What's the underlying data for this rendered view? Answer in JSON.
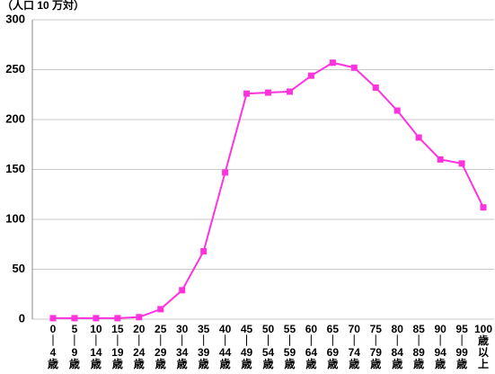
{
  "chart_data": {
    "type": "line",
    "y_axis_label": "（人口 10 万対）",
    "categories": [
      "0｜4歳",
      "5｜9歳",
      "10｜14歳",
      "15｜19歳",
      "20｜24歳",
      "25｜29歳",
      "30｜34歳",
      "35｜39歳",
      "40｜44歳",
      "45｜49歳",
      "50｜54歳",
      "55｜59歳",
      "60｜64歳",
      "65｜69歳",
      "70｜74歳",
      "75｜79歳",
      "80｜84歳",
      "85｜89歳",
      "90｜94歳",
      "95｜99歳",
      "100歳以上"
    ],
    "values": [
      1,
      1,
      1,
      1,
      2,
      10,
      29,
      68,
      147,
      226,
      227,
      228,
      244,
      257,
      252,
      232,
      209,
      182,
      160,
      156,
      112
    ],
    "color": "#ff33dd",
    "ylim": [
      0,
      300
    ],
    "yticks": [
      0,
      50,
      100,
      150,
      200,
      250,
      300
    ],
    "grid": true
  }
}
